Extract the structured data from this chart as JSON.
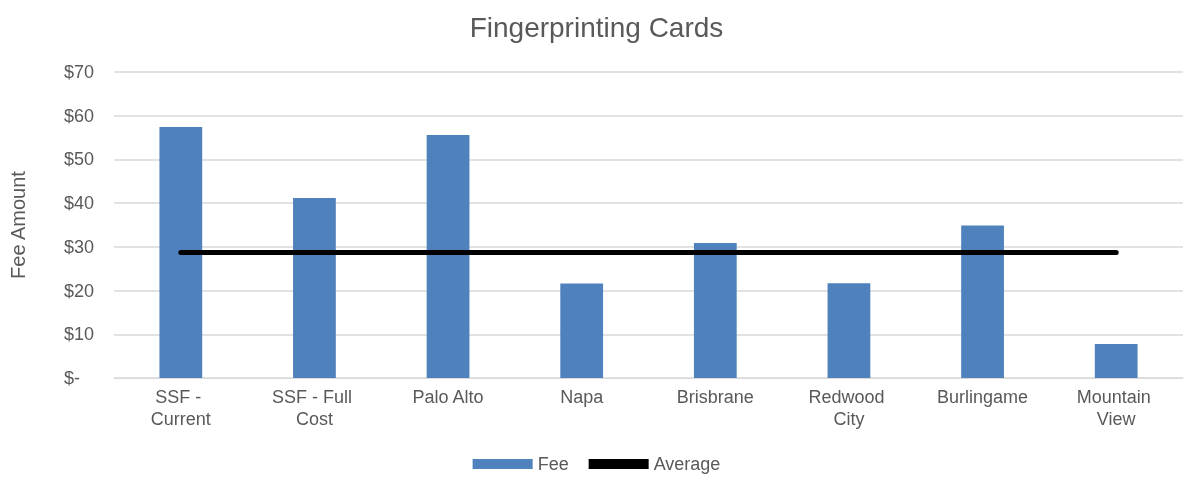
{
  "chart_data": {
    "type": "bar",
    "title": "Fingerprinting Cards",
    "ylabel": "Fee Amount",
    "categories": [
      "SSF - Current",
      "SSF - Full Cost",
      "Palo Alto",
      "Napa",
      "Brisbrane",
      "Redwood City",
      "Burlingame",
      "Mountain View"
    ],
    "series": [
      {
        "name": "Fee",
        "color": "#4f81bd",
        "values": [
          57.4,
          41.2,
          55.6,
          21.6,
          30.9,
          21.7,
          34.9,
          7.8
        ]
      },
      {
        "name": "Average",
        "type": "line",
        "color": "#000000",
        "marker": "none",
        "line_style": "solid",
        "values": [
          28.7,
          28.7,
          28.7,
          28.7,
          28.7,
          28.7,
          28.7,
          28.7
        ]
      }
    ],
    "ylim": [
      0,
      70
    ],
    "yticks": [
      {
        "value": 0,
        "label": "$-"
      },
      {
        "value": 10,
        "label": "$10"
      },
      {
        "value": 20,
        "label": "$20"
      },
      {
        "value": 30,
        "label": "$30"
      },
      {
        "value": 40,
        "label": "$40"
      },
      {
        "value": 50,
        "label": "$50"
      },
      {
        "value": 60,
        "label": "$60"
      },
      {
        "value": 70,
        "label": "$70"
      }
    ],
    "grid": "y",
    "legend": "bottom"
  }
}
